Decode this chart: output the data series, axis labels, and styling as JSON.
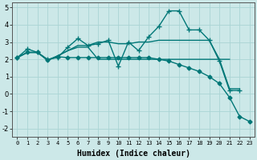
{
  "title": "",
  "xlabel": "Humidex (Indice chaleur)",
  "ylabel": "",
  "background_color": "#cce8e8",
  "grid_color": "#aad4d4",
  "line_color": "#007777",
  "ylim": [
    -2.5,
    5.3
  ],
  "xlim": [
    -0.5,
    23.5
  ],
  "yticks": [
    -2,
    -1,
    0,
    1,
    2,
    3,
    4,
    5
  ],
  "xticks": [
    0,
    1,
    2,
    3,
    4,
    5,
    6,
    7,
    8,
    9,
    10,
    11,
    12,
    13,
    14,
    15,
    16,
    17,
    18,
    19,
    20,
    21,
    22,
    23
  ],
  "series": [
    {
      "x": [
        0,
        1,
        2,
        3,
        4,
        5,
        6,
        7,
        8,
        9,
        10,
        11,
        12,
        13,
        14,
        15,
        16,
        17,
        18,
        19,
        20,
        21,
        22
      ],
      "y": [
        2.1,
        2.6,
        2.4,
        2.0,
        2.1,
        2.7,
        3.2,
        2.8,
        2.9,
        3.1,
        1.6,
        3.0,
        2.5,
        3.3,
        3.9,
        4.8,
        4.8,
        3.7,
        3.7,
        3.1,
        1.9,
        0.2,
        0.2
      ],
      "marker": "+",
      "linewidth": 1.0,
      "markersize": 4
    },
    {
      "x": [
        0,
        1,
        2,
        3,
        4,
        5,
        6,
        7,
        8,
        9,
        10,
        11,
        12,
        13,
        14,
        15,
        16,
        17,
        18,
        19,
        20,
        21,
        22
      ],
      "y": [
        2.1,
        2.4,
        2.4,
        1.95,
        2.2,
        2.5,
        2.8,
        2.8,
        3.0,
        3.0,
        2.9,
        2.9,
        3.0,
        3.0,
        3.1,
        3.1,
        3.1,
        3.1,
        3.1,
        3.1,
        2.0,
        0.3,
        0.3
      ],
      "marker": null,
      "linewidth": 1.0,
      "markersize": 0
    },
    {
      "x": [
        0,
        1,
        2,
        3,
        4,
        5,
        6,
        7,
        8,
        9,
        10,
        11,
        12,
        13,
        14,
        15,
        16,
        17,
        18,
        19,
        20,
        21
      ],
      "y": [
        2.1,
        2.4,
        2.4,
        1.95,
        2.2,
        2.5,
        2.7,
        2.7,
        2.0,
        2.0,
        2.0,
        2.0,
        2.0,
        2.0,
        2.0,
        2.0,
        2.0,
        2.0,
        2.0,
        2.0,
        2.0,
        2.0
      ],
      "marker": null,
      "linewidth": 1.0,
      "markersize": 0
    },
    {
      "x": [
        0,
        1,
        2,
        3,
        4,
        5,
        6,
        7,
        8,
        9,
        10,
        11,
        12,
        13,
        14,
        15,
        16,
        17,
        18,
        19,
        20,
        21,
        22,
        23
      ],
      "y": [
        2.1,
        2.4,
        2.4,
        1.95,
        2.15,
        2.1,
        2.1,
        2.1,
        2.1,
        2.1,
        2.1,
        2.1,
        2.1,
        2.1,
        2.0,
        1.9,
        1.7,
        1.5,
        1.3,
        1.0,
        0.6,
        -0.2,
        -1.3,
        -1.6
      ],
      "marker": "D",
      "linewidth": 1.0,
      "markersize": 2.5
    }
  ]
}
